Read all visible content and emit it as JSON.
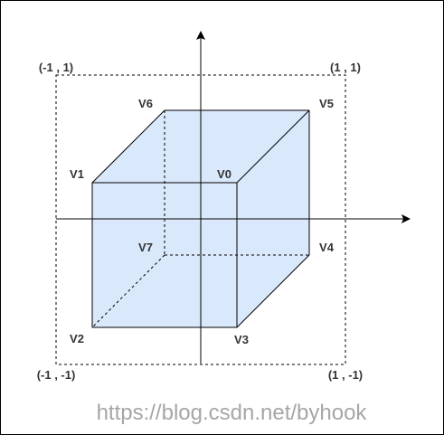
{
  "colors": {
    "cube_fill": "#dae8fc",
    "stroke": "#000000",
    "label": "#333333",
    "watermark": "#a6a6a6"
  },
  "corners": {
    "top_left": "(-1 , 1)",
    "top_right": "(1 , 1)",
    "bottom_left": "(-1 , -1)",
    "bottom_right": "(1 , -1)"
  },
  "vertices": {
    "v0": "V0",
    "v1": "V1",
    "v2": "V2",
    "v3": "V3",
    "v4": "V4",
    "v5": "V5",
    "v6": "V6",
    "v7": "V7"
  },
  "watermark": "https://blog.csdn.net/byhook"
}
